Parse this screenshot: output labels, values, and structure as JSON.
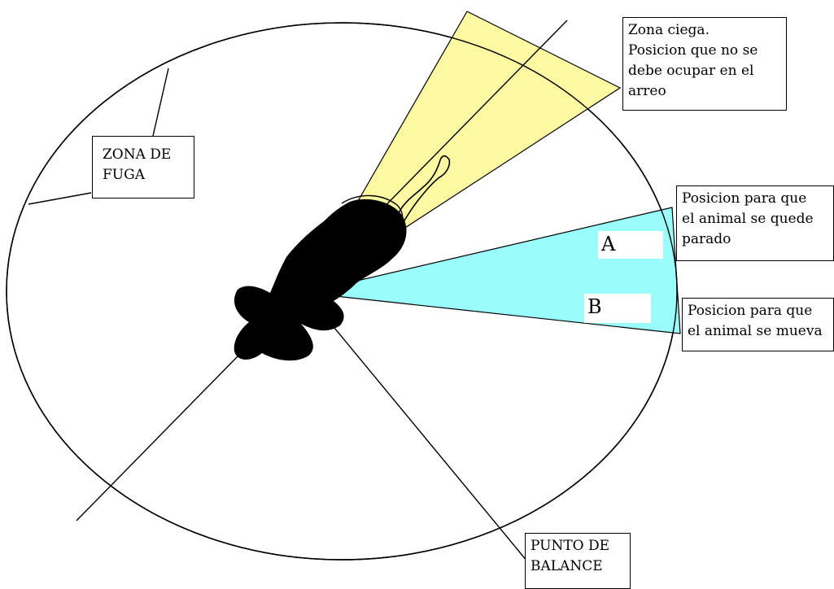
{
  "colors": {
    "blind_zone": "#fcf9a2",
    "balance_zone": "#9afcfb",
    "outline": "#000000",
    "background": "#ffffff"
  },
  "labels": {
    "blind_zone": [
      "Zona ciega.",
      "Posicion que no se",
      "debe ocupar en el",
      "arreo"
    ],
    "flight_zone": [
      "ZONA DE",
      "FUGA"
    ],
    "stop_position": [
      "Posicion para que",
      "el animal se quede",
      "parado"
    ],
    "move_position": [
      "Posicion para que",
      "el animal se mueva"
    ],
    "balance_point": [
      "PUNTO DE",
      "BALANCE"
    ]
  },
  "markers": {
    "a": "A",
    "b": "B"
  }
}
